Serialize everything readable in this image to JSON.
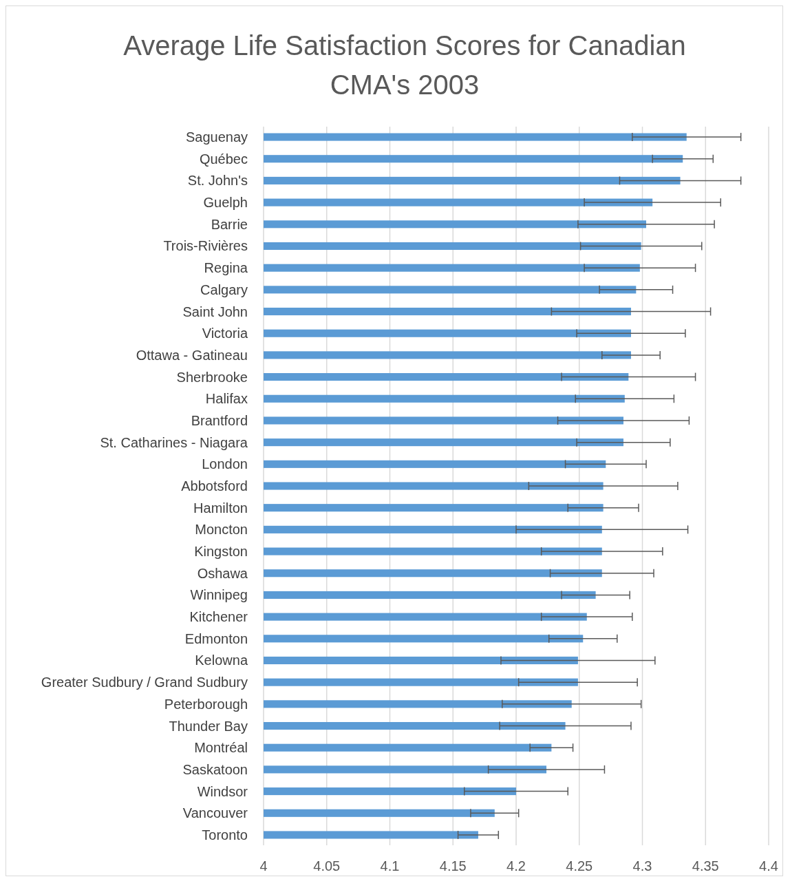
{
  "chart_data": {
    "type": "bar",
    "orientation": "horizontal",
    "title": "Average Life Satisfaction Scores for Canadian CMA's 2003",
    "categories": [
      "Saguenay",
      "Québec",
      "St. John's",
      "Guelph",
      "Barrie",
      "Trois-Rivières",
      "Regina",
      "Calgary",
      "Saint John",
      "Victoria",
      "Ottawa - Gatineau",
      "Sherbrooke",
      "Halifax",
      "Brantford",
      "St. Catharines - Niagara",
      "London",
      "Abbotsford",
      "Hamilton",
      "Moncton",
      "Kingston",
      "Oshawa",
      "Winnipeg",
      "Kitchener",
      "Edmonton",
      "Kelowna",
      "Greater Sudbury / Grand Sudbury",
      "Peterborough",
      "Thunder Bay",
      "Montréal",
      "Saskatoon",
      "Windsor",
      "Vancouver",
      "Toronto"
    ],
    "series": [
      {
        "color": "#5b9bd5",
        "values": [
          4.335,
          4.332,
          4.33,
          4.308,
          4.303,
          4.299,
          4.298,
          4.295,
          4.291,
          4.291,
          4.291,
          4.289,
          4.286,
          4.285,
          4.285,
          4.271,
          4.269,
          4.269,
          4.268,
          4.268,
          4.268,
          4.263,
          4.256,
          4.253,
          4.249,
          4.249,
          4.244,
          4.239,
          4.228,
          4.224,
          4.2,
          4.183,
          4.17
        ],
        "errors": [
          0.043,
          0.024,
          0.048,
          0.054,
          0.054,
          0.048,
          0.044,
          0.029,
          0.063,
          0.043,
          0.023,
          0.053,
          0.039,
          0.052,
          0.037,
          0.032,
          0.059,
          0.028,
          0.068,
          0.048,
          0.041,
          0.027,
          0.036,
          0.027,
          0.061,
          0.047,
          0.055,
          0.052,
          0.017,
          0.046,
          0.041,
          0.019,
          0.016
        ]
      }
    ],
    "xlim": [
      4,
      4.4
    ],
    "xticks": [
      4,
      4.05,
      4.1,
      4.15,
      4.2,
      4.25,
      4.3,
      4.35,
      4.4
    ],
    "grid": "x"
  }
}
